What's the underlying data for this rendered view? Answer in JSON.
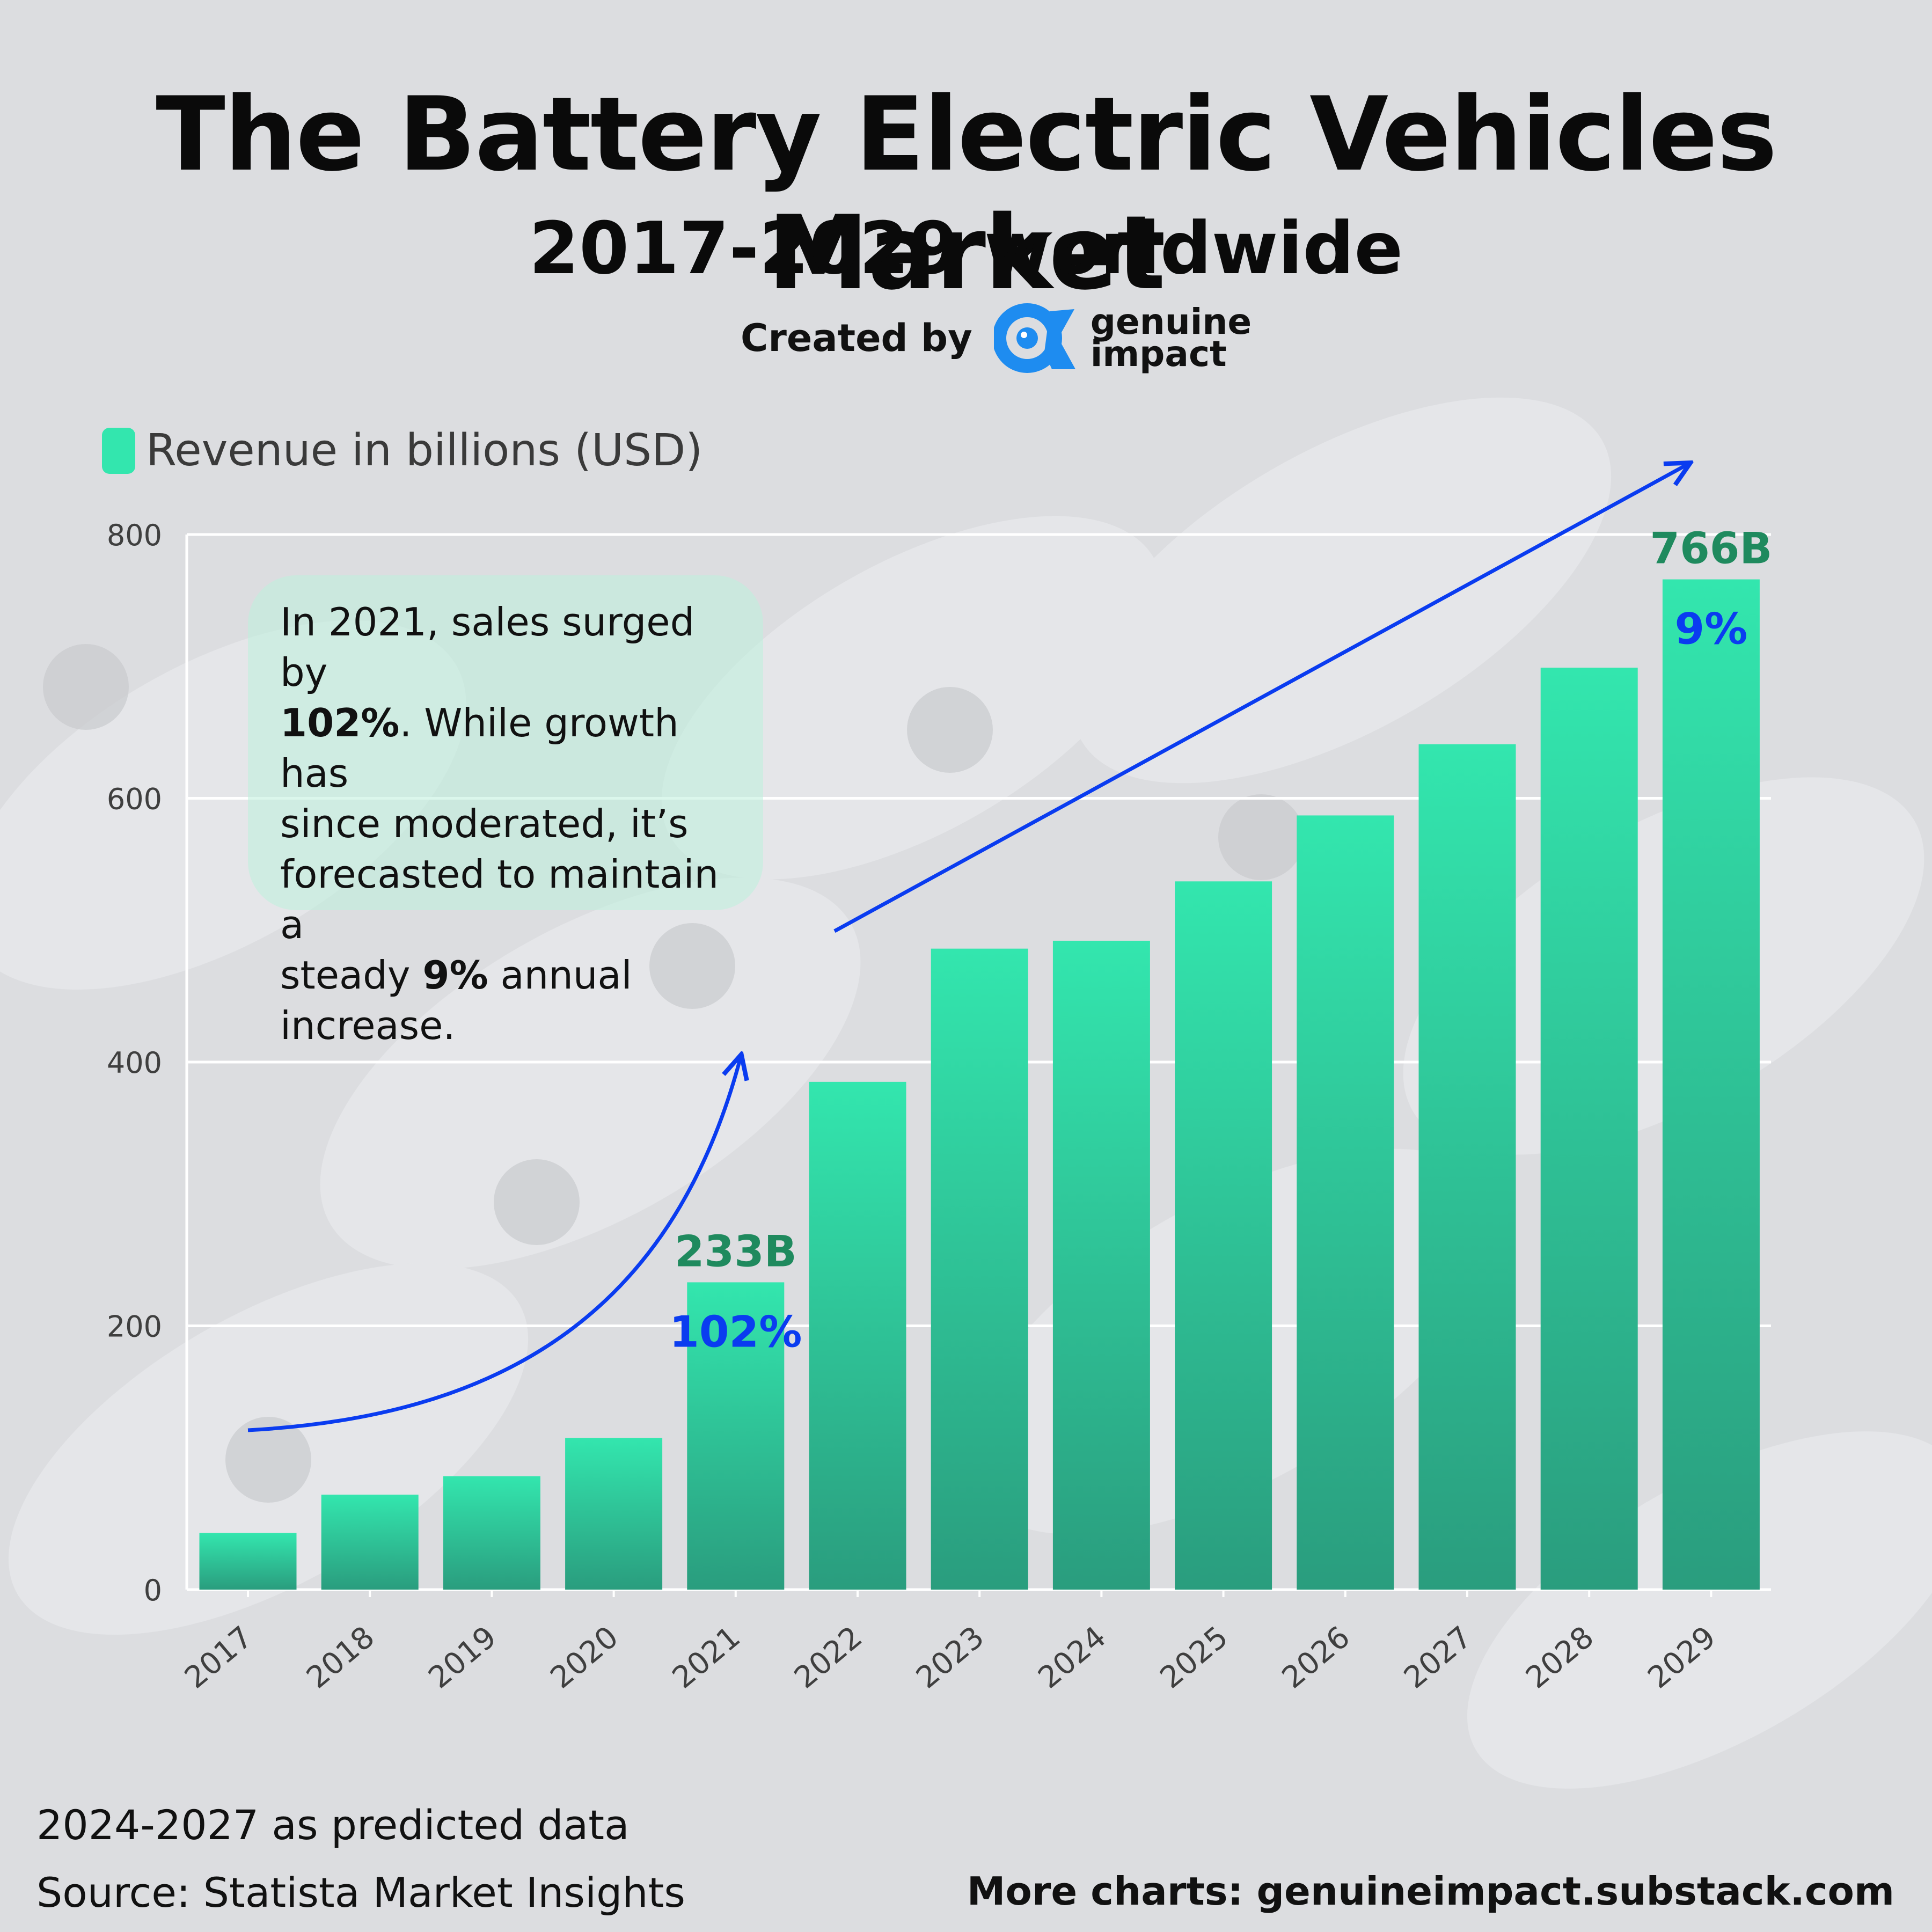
{
  "header": {
    "title": "The Battery Electric Vehicles Market",
    "subtitle": "2017-2029 worldwide",
    "credit_prefix": "Created by",
    "brand_line1": "genuine",
    "brand_line2": "impact",
    "brand_logo_icon": "genuine-impact-logo-icon"
  },
  "annotation": {
    "line1": "In 2021, sales surged by",
    "line2_bold": "102%",
    "line2_rest": ". While growth has",
    "line3": "since moderated, it’s",
    "line4": "forecasted to maintain a",
    "line5_start": "steady ",
    "line5_bold": "9%",
    "line5_rest": " annual",
    "line6": "increase."
  },
  "footer": {
    "note": "2024-2027 as predicted data",
    "source": "Source:  Statista Market Insights",
    "more": "More charts: genuineimpact.substack.com"
  },
  "colors": {
    "bar_top": "#33e6ae",
    "bar_bottom": "#2a9d7e",
    "value_label": "#1f8a5e",
    "growth_label": "#0a3cf0",
    "arrow": "#0a3cf0",
    "grid": "#ffffff",
    "axis_text": "#3f3f3f"
  },
  "chart_data": {
    "type": "bar",
    "categories": [
      "2017",
      "2018",
      "2019",
      "2020",
      "2021",
      "2022",
      "2023",
      "2024",
      "2025",
      "2026",
      "2027",
      "2028",
      "2029"
    ],
    "series": [
      {
        "name": "Revenue in billions (USD)",
        "values": [
          43,
          72,
          86,
          115,
          233,
          385,
          486,
          492,
          537,
          587,
          641,
          699,
          766
        ]
      }
    ],
    "ylim": [
      0,
      800
    ],
    "yticks": [
      0,
      200,
      400,
      600,
      800
    ],
    "grid": true,
    "legend_position": "top-left",
    "annotations": [
      {
        "category": "2021",
        "value_label": "233B",
        "growth_label": "102%"
      },
      {
        "category": "2029",
        "value_label": "766B",
        "growth_label": "9%"
      }
    ]
  }
}
